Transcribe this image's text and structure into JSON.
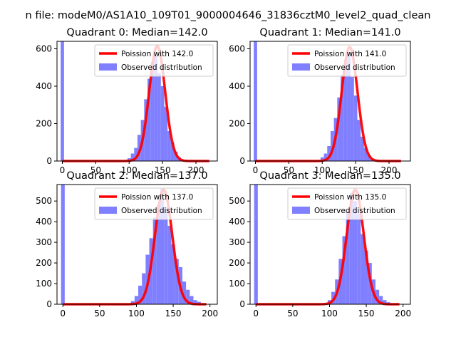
{
  "figure": {
    "suptitle": "n file: modeM0/AS1A10_109T01_9000004646_31836cztM0_level2_quad_clean"
  },
  "chart_data": [
    {
      "type": "bar",
      "title": "Quadrant 0: Median=142.0",
      "xlim": [
        -8,
        232
      ],
      "ylim": [
        0,
        640
      ],
      "xticks": [
        0,
        50,
        100,
        150,
        200
      ],
      "yticks": [
        0,
        200,
        400,
        600
      ],
      "legend_position": "top-right",
      "hist": {
        "name": "Observed distribution",
        "color": "#7f7fff",
        "bin_width": 5,
        "bins": [
          {
            "x": 0,
            "y": 640
          },
          {
            "x": 100,
            "y": 15
          },
          {
            "x": 105,
            "y": 40
          },
          {
            "x": 110,
            "y": 70
          },
          {
            "x": 115,
            "y": 140
          },
          {
            "x": 120,
            "y": 220
          },
          {
            "x": 125,
            "y": 330
          },
          {
            "x": 130,
            "y": 440
          },
          {
            "x": 135,
            "y": 530
          },
          {
            "x": 140,
            "y": 560
          },
          {
            "x": 145,
            "y": 470
          },
          {
            "x": 150,
            "y": 400
          },
          {
            "x": 155,
            "y": 290
          },
          {
            "x": 160,
            "y": 160
          },
          {
            "x": 165,
            "y": 100
          },
          {
            "x": 170,
            "y": 50
          },
          {
            "x": 175,
            "y": 20
          },
          {
            "x": 180,
            "y": 8
          }
        ]
      },
      "fit": {
        "name": "Poission with 142.0",
        "color": "#ff0000",
        "mean": 142.0,
        "peak": 615,
        "x_start": 0,
        "x_end": 220
      }
    },
    {
      "type": "bar",
      "title": "Quadrant 1: Median=141.0",
      "xlim": [
        -8,
        232
      ],
      "ylim": [
        0,
        640
      ],
      "xticks": [
        0,
        50,
        100,
        150,
        200
      ],
      "yticks": [
        0,
        200,
        400,
        600
      ],
      "legend_position": "top-right",
      "hist": {
        "name": "Observed distribution",
        "color": "#7f7fff",
        "bin_width": 5,
        "bins": [
          {
            "x": 0,
            "y": 640
          },
          {
            "x": 100,
            "y": 20
          },
          {
            "x": 105,
            "y": 40
          },
          {
            "x": 110,
            "y": 80
          },
          {
            "x": 115,
            "y": 160
          },
          {
            "x": 120,
            "y": 230
          },
          {
            "x": 125,
            "y": 340
          },
          {
            "x": 130,
            "y": 460
          },
          {
            "x": 135,
            "y": 540
          },
          {
            "x": 140,
            "y": 580
          },
          {
            "x": 145,
            "y": 450
          },
          {
            "x": 150,
            "y": 350
          },
          {
            "x": 155,
            "y": 220
          },
          {
            "x": 160,
            "y": 130
          },
          {
            "x": 165,
            "y": 70
          },
          {
            "x": 170,
            "y": 30
          },
          {
            "x": 175,
            "y": 12
          }
        ]
      },
      "fit": {
        "name": "Poission with 141.0",
        "color": "#ff0000",
        "mean": 141.0,
        "peak": 610,
        "x_start": 0,
        "x_end": 218
      }
    },
    {
      "type": "bar",
      "title": "Quadrant 2: Median=137.0",
      "xlim": [
        -8,
        210
      ],
      "ylim": [
        0,
        580
      ],
      "xticks": [
        0,
        50,
        100,
        150,
        200
      ],
      "yticks": [
        0,
        100,
        200,
        300,
        400,
        500
      ],
      "legend_position": "top-right",
      "hist": {
        "name": "Observed distribution",
        "color": "#7f7fff",
        "bin_width": 5,
        "bins": [
          {
            "x": 0,
            "y": 580
          },
          {
            "x": 95,
            "y": 15
          },
          {
            "x": 100,
            "y": 40
          },
          {
            "x": 105,
            "y": 90
          },
          {
            "x": 110,
            "y": 150
          },
          {
            "x": 115,
            "y": 240
          },
          {
            "x": 120,
            "y": 320
          },
          {
            "x": 125,
            "y": 420
          },
          {
            "x": 130,
            "y": 480
          },
          {
            "x": 135,
            "y": 560
          },
          {
            "x": 140,
            "y": 470
          },
          {
            "x": 145,
            "y": 380
          },
          {
            "x": 150,
            "y": 290
          },
          {
            "x": 155,
            "y": 220
          },
          {
            "x": 160,
            "y": 180
          },
          {
            "x": 165,
            "y": 110
          },
          {
            "x": 170,
            "y": 70
          },
          {
            "x": 175,
            "y": 40
          },
          {
            "x": 180,
            "y": 20
          },
          {
            "x": 185,
            "y": 12
          }
        ]
      },
      "fit": {
        "name": "Poission with 137.0",
        "color": "#ff0000",
        "mean": 137.0,
        "peak": 555,
        "x_start": 0,
        "x_end": 195
      }
    },
    {
      "type": "bar",
      "title": "Quadrant 3: Median=135.0",
      "xlim": [
        -8,
        210
      ],
      "ylim": [
        0,
        580
      ],
      "xticks": [
        0,
        50,
        100,
        150,
        200
      ],
      "yticks": [
        0,
        100,
        200,
        300,
        400,
        500
      ],
      "legend_position": "top-right",
      "hist": {
        "name": "Observed distribution",
        "color": "#7f7fff",
        "bin_width": 5,
        "bins": [
          {
            "x": 0,
            "y": 580
          },
          {
            "x": 100,
            "y": 20
          },
          {
            "x": 105,
            "y": 60
          },
          {
            "x": 110,
            "y": 120
          },
          {
            "x": 115,
            "y": 220
          },
          {
            "x": 120,
            "y": 330
          },
          {
            "x": 125,
            "y": 450
          },
          {
            "x": 130,
            "y": 540
          },
          {
            "x": 135,
            "y": 500
          },
          {
            "x": 140,
            "y": 440
          },
          {
            "x": 145,
            "y": 340
          },
          {
            "x": 150,
            "y": 260
          },
          {
            "x": 155,
            "y": 200
          },
          {
            "x": 160,
            "y": 120
          },
          {
            "x": 165,
            "y": 70
          },
          {
            "x": 170,
            "y": 40
          },
          {
            "x": 175,
            "y": 20
          },
          {
            "x": 180,
            "y": 10
          }
        ]
      },
      "fit": {
        "name": "Poission with 135.0",
        "color": "#ff0000",
        "mean": 135.0,
        "peak": 555,
        "x_start": 0,
        "x_end": 195
      }
    }
  ]
}
